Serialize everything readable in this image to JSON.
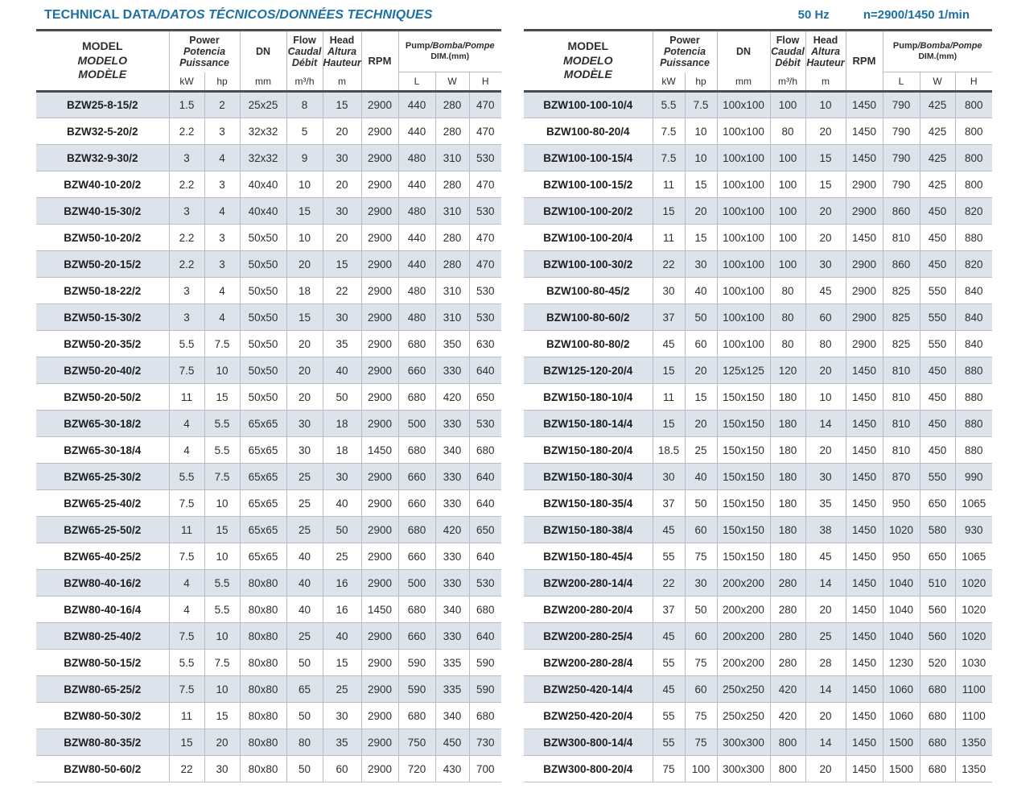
{
  "page": {
    "title_main": "TECHNICAL DATA",
    "title_rest": "/DATOS TÉCNICOS/DONNÉES TECHNIQUES",
    "frequency": "50 Hz",
    "speed": "n=2900/1450 1/min"
  },
  "colors": {
    "accent_blue": "#1d6fa5",
    "row_stripe": "#dde3ea",
    "border_dark": "#4a4e54",
    "border_light": "#b7bdc5",
    "text": "#2e2e30"
  },
  "header": {
    "model_lines": [
      "MODEL",
      "MODELO",
      "MODÈLE"
    ],
    "power_lines": [
      "Power",
      "Potencia",
      "Puissance"
    ],
    "dn_label": "DN",
    "flow_lines": [
      "Flow",
      "Caudal",
      "Débit"
    ],
    "head_lines": [
      "Head",
      "Altura",
      "Hauteur"
    ],
    "rpm_label": "RPM",
    "dim_en": "Pump",
    "dim_rest": "/Bomba/Pompe",
    "dim_sub": "DIM.(mm)",
    "units": {
      "kw": "kW",
      "hp": "hp",
      "dn": "mm",
      "flow": "m³/h",
      "head": "m",
      "l": "L",
      "w": "W",
      "h": "H"
    }
  },
  "tables": {
    "left": {
      "rows": [
        [
          "BZW25-8-15/2",
          "1.5",
          "2",
          "25x25",
          "8",
          "15",
          "2900",
          "440",
          "280",
          "470"
        ],
        [
          "BZW32-5-20/2",
          "2.2",
          "3",
          "32x32",
          "5",
          "20",
          "2900",
          "440",
          "280",
          "470"
        ],
        [
          "BZW32-9-30/2",
          "3",
          "4",
          "32x32",
          "9",
          "30",
          "2900",
          "480",
          "310",
          "530"
        ],
        [
          "BZW40-10-20/2",
          "2.2",
          "3",
          "40x40",
          "10",
          "20",
          "2900",
          "440",
          "280",
          "470"
        ],
        [
          "BZW40-15-30/2",
          "3",
          "4",
          "40x40",
          "15",
          "30",
          "2900",
          "480",
          "310",
          "530"
        ],
        [
          "BZW50-10-20/2",
          "2.2",
          "3",
          "50x50",
          "10",
          "20",
          "2900",
          "440",
          "280",
          "470"
        ],
        [
          "BZW50-20-15/2",
          "2.2",
          "3",
          "50x50",
          "20",
          "15",
          "2900",
          "440",
          "280",
          "470"
        ],
        [
          "BZW50-18-22/2",
          "3",
          "4",
          "50x50",
          "18",
          "22",
          "2900",
          "480",
          "310",
          "530"
        ],
        [
          "BZW50-15-30/2",
          "3",
          "4",
          "50x50",
          "15",
          "30",
          "2900",
          "480",
          "310",
          "530"
        ],
        [
          "BZW50-20-35/2",
          "5.5",
          "7.5",
          "50x50",
          "20",
          "35",
          "2900",
          "680",
          "350",
          "630"
        ],
        [
          "BZW50-20-40/2",
          "7.5",
          "10",
          "50x50",
          "20",
          "40",
          "2900",
          "660",
          "330",
          "640"
        ],
        [
          "BZW50-20-50/2",
          "11",
          "15",
          "50x50",
          "20",
          "50",
          "2900",
          "680",
          "420",
          "650"
        ],
        [
          "BZW65-30-18/2",
          "4",
          "5.5",
          "65x65",
          "30",
          "18",
          "2900",
          "500",
          "330",
          "530"
        ],
        [
          "BZW65-30-18/4",
          "4",
          "5.5",
          "65x65",
          "30",
          "18",
          "1450",
          "680",
          "340",
          "680"
        ],
        [
          "BZW65-25-30/2",
          "5.5",
          "7.5",
          "65x65",
          "25",
          "30",
          "2900",
          "660",
          "330",
          "640"
        ],
        [
          "BZW65-25-40/2",
          "7.5",
          "10",
          "65x65",
          "25",
          "40",
          "2900",
          "660",
          "330",
          "640"
        ],
        [
          "BZW65-25-50/2",
          "11",
          "15",
          "65x65",
          "25",
          "50",
          "2900",
          "680",
          "420",
          "650"
        ],
        [
          "BZW65-40-25/2",
          "7.5",
          "10",
          "65x65",
          "40",
          "25",
          "2900",
          "660",
          "330",
          "640"
        ],
        [
          "BZW80-40-16/2",
          "4",
          "5.5",
          "80x80",
          "40",
          "16",
          "2900",
          "500",
          "330",
          "530"
        ],
        [
          "BZW80-40-16/4",
          "4",
          "5.5",
          "80x80",
          "40",
          "16",
          "1450",
          "680",
          "340",
          "680"
        ],
        [
          "BZW80-25-40/2",
          "7.5",
          "10",
          "80x80",
          "25",
          "40",
          "2900",
          "660",
          "330",
          "640"
        ],
        [
          "BZW80-50-15/2",
          "5.5",
          "7.5",
          "80x80",
          "50",
          "15",
          "2900",
          "590",
          "335",
          "590"
        ],
        [
          "BZW80-65-25/2",
          "7.5",
          "10",
          "80x80",
          "65",
          "25",
          "2900",
          "590",
          "335",
          "590"
        ],
        [
          "BZW80-50-30/2",
          "11",
          "15",
          "80x80",
          "50",
          "30",
          "2900",
          "680",
          "340",
          "680"
        ],
        [
          "BZW80-80-35/2",
          "15",
          "20",
          "80x80",
          "80",
          "35",
          "2900",
          "750",
          "450",
          "730"
        ],
        [
          "BZW80-50-60/2",
          "22",
          "30",
          "80x80",
          "50",
          "60",
          "2900",
          "720",
          "430",
          "700"
        ]
      ]
    },
    "right": {
      "rows": [
        [
          "BZW100-100-10/4",
          "5.5",
          "7.5",
          "100x100",
          "100",
          "10",
          "1450",
          "790",
          "425",
          "800"
        ],
        [
          "BZW100-80-20/4",
          "7.5",
          "10",
          "100x100",
          "80",
          "20",
          "1450",
          "790",
          "425",
          "800"
        ],
        [
          "BZW100-100-15/4",
          "7.5",
          "10",
          "100x100",
          "100",
          "15",
          "1450",
          "790",
          "425",
          "800"
        ],
        [
          "BZW100-100-15/2",
          "11",
          "15",
          "100x100",
          "100",
          "15",
          "2900",
          "790",
          "425",
          "800"
        ],
        [
          "BZW100-100-20/2",
          "15",
          "20",
          "100x100",
          "100",
          "20",
          "2900",
          "860",
          "450",
          "820"
        ],
        [
          "BZW100-100-20/4",
          "11",
          "15",
          "100x100",
          "100",
          "20",
          "1450",
          "810",
          "450",
          "880"
        ],
        [
          "BZW100-100-30/2",
          "22",
          "30",
          "100x100",
          "100",
          "30",
          "2900",
          "860",
          "450",
          "820"
        ],
        [
          "BZW100-80-45/2",
          "30",
          "40",
          "100x100",
          "80",
          "45",
          "2900",
          "825",
          "550",
          "840"
        ],
        [
          "BZW100-80-60/2",
          "37",
          "50",
          "100x100",
          "80",
          "60",
          "2900",
          "825",
          "550",
          "840"
        ],
        [
          "BZW100-80-80/2",
          "45",
          "60",
          "100x100",
          "80",
          "80",
          "2900",
          "825",
          "550",
          "840"
        ],
        [
          "BZW125-120-20/4",
          "15",
          "20",
          "125x125",
          "120",
          "20",
          "1450",
          "810",
          "450",
          "880"
        ],
        [
          "BZW150-180-10/4",
          "11",
          "15",
          "150x150",
          "180",
          "10",
          "1450",
          "810",
          "450",
          "880"
        ],
        [
          "BZW150-180-14/4",
          "15",
          "20",
          "150x150",
          "180",
          "14",
          "1450",
          "810",
          "450",
          "880"
        ],
        [
          "BZW150-180-20/4",
          "18.5",
          "25",
          "150x150",
          "180",
          "20",
          "1450",
          "810",
          "450",
          "880"
        ],
        [
          "BZW150-180-30/4",
          "30",
          "40",
          "150x150",
          "180",
          "30",
          "1450",
          "870",
          "550",
          "990"
        ],
        [
          "BZW150-180-35/4",
          "37",
          "50",
          "150x150",
          "180",
          "35",
          "1450",
          "950",
          "650",
          "1065"
        ],
        [
          "BZW150-180-38/4",
          "45",
          "60",
          "150x150",
          "180",
          "38",
          "1450",
          "1020",
          "580",
          "930"
        ],
        [
          "BZW150-180-45/4",
          "55",
          "75",
          "150x150",
          "180",
          "45",
          "1450",
          "950",
          "650",
          "1065"
        ],
        [
          "BZW200-280-14/4",
          "22",
          "30",
          "200x200",
          "280",
          "14",
          "1450",
          "1040",
          "510",
          "1020"
        ],
        [
          "BZW200-280-20/4",
          "37",
          "50",
          "200x200",
          "280",
          "20",
          "1450",
          "1040",
          "560",
          "1020"
        ],
        [
          "BZW200-280-25/4",
          "45",
          "60",
          "200x200",
          "280",
          "25",
          "1450",
          "1040",
          "560",
          "1020"
        ],
        [
          "BZW200-280-28/4",
          "55",
          "75",
          "200x200",
          "280",
          "28",
          "1450",
          "1230",
          "520",
          "1030"
        ],
        [
          "BZW250-420-14/4",
          "45",
          "60",
          "250x250",
          "420",
          "14",
          "1450",
          "1060",
          "680",
          "1100"
        ],
        [
          "BZW250-420-20/4",
          "55",
          "75",
          "250x250",
          "420",
          "20",
          "1450",
          "1060",
          "680",
          "1100"
        ],
        [
          "BZW300-800-14/4",
          "55",
          "75",
          "300x300",
          "800",
          "14",
          "1450",
          "1500",
          "680",
          "1350"
        ],
        [
          "BZW300-800-20/4",
          "75",
          "100",
          "300x300",
          "800",
          "20",
          "1450",
          "1500",
          "680",
          "1350"
        ]
      ]
    }
  }
}
